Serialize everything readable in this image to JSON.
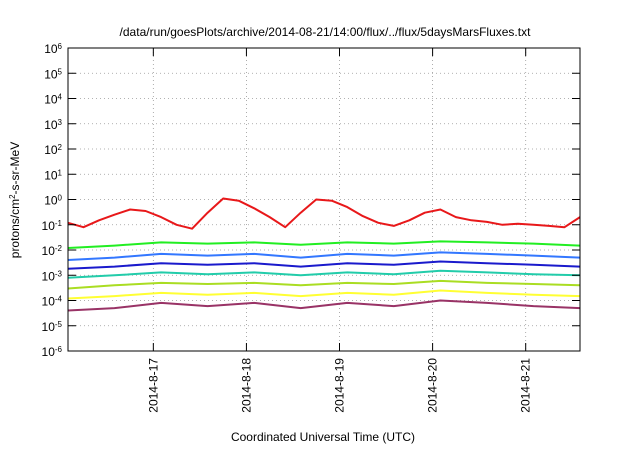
{
  "chart_data": {
    "type": "line",
    "title": "/data/run/goesPlots/archive/2014-08-21/14:00/flux/../flux/5daysMarsFluxes.txt",
    "xlabel": "Coordinated Universal Time (UTC)",
    "ylabel": "protons/cm²-s-sr-MeV",
    "ylabel_parts": {
      "pre": "protons/cm",
      "sup": "2",
      "post": "-s-sr-MeV"
    },
    "yscale": "log",
    "ylim": [
      1e-06,
      1000000.0
    ],
    "y_ticks": [
      {
        "base": "10",
        "exp": "-6",
        "value": 1e-06
      },
      {
        "base": "10",
        "exp": "-5",
        "value": 1e-05
      },
      {
        "base": "10",
        "exp": "-4",
        "value": 0.0001
      },
      {
        "base": "10",
        "exp": "-3",
        "value": 0.001
      },
      {
        "base": "10",
        "exp": "-2",
        "value": 0.01
      },
      {
        "base": "10",
        "exp": "-1",
        "value": 0.1
      },
      {
        "base": "10",
        "exp": "0",
        "value": 1
      },
      {
        "base": "10",
        "exp": "1",
        "value": 10
      },
      {
        "base": "10",
        "exp": "2",
        "value": 100
      },
      {
        "base": "10",
        "exp": "3",
        "value": 1000
      },
      {
        "base": "10",
        "exp": "4",
        "value": 10000
      },
      {
        "base": "10",
        "exp": "5",
        "value": 100000
      },
      {
        "base": "10",
        "exp": "6",
        "value": 1000000
      }
    ],
    "xlim": [
      "2014-08-16 02:00",
      "2014-08-21 14:00"
    ],
    "x_ticks": [
      "2014-8-17",
      "2014-8-18",
      "2014-8-19",
      "2014-8-20",
      "2014-8-21"
    ],
    "grid": true,
    "series": [
      {
        "color": "#e8181a",
        "x": [
          "2014-08-16 02:00",
          "2014-08-16 06:00",
          "2014-08-16 10:00",
          "2014-08-16 14:00",
          "2014-08-16 18:00",
          "2014-08-16 22:00",
          "2014-08-17 02:00",
          "2014-08-17 06:00",
          "2014-08-17 10:00",
          "2014-08-17 14:00",
          "2014-08-17 18:00",
          "2014-08-17 22:00",
          "2014-08-18 02:00",
          "2014-08-18 06:00",
          "2014-08-18 10:00",
          "2014-08-18 14:00",
          "2014-08-18 18:00",
          "2014-08-18 22:00",
          "2014-08-19 02:00",
          "2014-08-19 06:00",
          "2014-08-19 10:00",
          "2014-08-19 14:00",
          "2014-08-19 18:00",
          "2014-08-19 22:00",
          "2014-08-20 02:00",
          "2014-08-20 06:00",
          "2014-08-20 10:00",
          "2014-08-20 14:00",
          "2014-08-20 18:00",
          "2014-08-20 22:00",
          "2014-08-21 02:00",
          "2014-08-21 06:00",
          "2014-08-21 10:00",
          "2014-08-21 14:00"
        ],
        "values": [
          0.12,
          0.08,
          0.15,
          0.25,
          0.4,
          0.35,
          0.2,
          0.1,
          0.07,
          0.3,
          1.1,
          0.9,
          0.45,
          0.2,
          0.08,
          0.3,
          1.0,
          0.9,
          0.5,
          0.22,
          0.12,
          0.09,
          0.15,
          0.3,
          0.4,
          0.2,
          0.15,
          0.13,
          0.1,
          0.11,
          0.1,
          0.09,
          0.08,
          0.2
        ]
      },
      {
        "color": "#22ee22",
        "x": [
          "2014-08-16 02:00",
          "2014-08-16 14:00",
          "2014-08-17 02:00",
          "2014-08-17 14:00",
          "2014-08-18 02:00",
          "2014-08-18 14:00",
          "2014-08-19 02:00",
          "2014-08-19 14:00",
          "2014-08-20 02:00",
          "2014-08-20 14:00",
          "2014-08-21 02:00",
          "2014-08-21 14:00"
        ],
        "values": [
          0.012,
          0.015,
          0.02,
          0.018,
          0.02,
          0.016,
          0.02,
          0.018,
          0.022,
          0.02,
          0.018,
          0.015
        ]
      },
      {
        "color": "#3377ff",
        "x": [
          "2014-08-16 02:00",
          "2014-08-16 14:00",
          "2014-08-17 02:00",
          "2014-08-17 14:00",
          "2014-08-18 02:00",
          "2014-08-18 14:00",
          "2014-08-19 02:00",
          "2014-08-19 14:00",
          "2014-08-20 02:00",
          "2014-08-20 14:00",
          "2014-08-21 02:00",
          "2014-08-21 14:00"
        ],
        "values": [
          0.004,
          0.005,
          0.007,
          0.006,
          0.007,
          0.005,
          0.007,
          0.006,
          0.008,
          0.007,
          0.006,
          0.005
        ]
      },
      {
        "color": "#1a1acc",
        "x": [
          "2014-08-16 02:00",
          "2014-08-16 14:00",
          "2014-08-17 02:00",
          "2014-08-17 14:00",
          "2014-08-18 02:00",
          "2014-08-18 14:00",
          "2014-08-19 02:00",
          "2014-08-19 14:00",
          "2014-08-20 02:00",
          "2014-08-20 14:00",
          "2014-08-21 02:00",
          "2014-08-21 14:00"
        ],
        "values": [
          0.0018,
          0.0022,
          0.003,
          0.0026,
          0.003,
          0.0022,
          0.003,
          0.0026,
          0.0035,
          0.003,
          0.0026,
          0.0022
        ]
      },
      {
        "color": "#22ccaa",
        "x": [
          "2014-08-16 02:00",
          "2014-08-16 14:00",
          "2014-08-17 02:00",
          "2014-08-17 14:00",
          "2014-08-18 02:00",
          "2014-08-18 14:00",
          "2014-08-19 02:00",
          "2014-08-19 14:00",
          "2014-08-20 02:00",
          "2014-08-20 14:00",
          "2014-08-21 02:00",
          "2014-08-21 14:00"
        ],
        "values": [
          0.0008,
          0.001,
          0.0013,
          0.0011,
          0.0013,
          0.001,
          0.0013,
          0.0011,
          0.0015,
          0.0013,
          0.0011,
          0.001
        ]
      },
      {
        "color": "#aadd22",
        "x": [
          "2014-08-16 02:00",
          "2014-08-16 14:00",
          "2014-08-17 02:00",
          "2014-08-17 14:00",
          "2014-08-18 02:00",
          "2014-08-18 14:00",
          "2014-08-19 02:00",
          "2014-08-19 14:00",
          "2014-08-20 02:00",
          "2014-08-20 14:00",
          "2014-08-21 02:00",
          "2014-08-21 14:00"
        ],
        "values": [
          0.0003,
          0.0004,
          0.0005,
          0.00045,
          0.0005,
          0.0004,
          0.0005,
          0.00045,
          0.0006,
          0.0005,
          0.00045,
          0.0004
        ]
      },
      {
        "color": "#ffff33",
        "x": [
          "2014-08-16 02:00",
          "2014-08-16 14:00",
          "2014-08-17 02:00",
          "2014-08-17 14:00",
          "2014-08-18 02:00",
          "2014-08-18 14:00",
          "2014-08-19 02:00",
          "2014-08-19 14:00",
          "2014-08-20 02:00",
          "2014-08-20 14:00",
          "2014-08-21 02:00",
          "2014-08-21 14:00"
        ],
        "values": [
          0.00012,
          0.00015,
          0.0002,
          0.00017,
          0.0002,
          0.00015,
          0.0002,
          0.00017,
          0.00025,
          0.0002,
          0.00017,
          0.00015
        ]
      },
      {
        "color": "#993366",
        "x": [
          "2014-08-16 02:00",
          "2014-08-16 14:00",
          "2014-08-17 02:00",
          "2014-08-17 14:00",
          "2014-08-18 02:00",
          "2014-08-18 14:00",
          "2014-08-19 02:00",
          "2014-08-19 14:00",
          "2014-08-20 02:00",
          "2014-08-20 14:00",
          "2014-08-21 02:00",
          "2014-08-21 14:00"
        ],
        "values": [
          4e-05,
          5e-05,
          8e-05,
          6e-05,
          8e-05,
          5e-05,
          8e-05,
          6e-05,
          0.0001,
          8e-05,
          6e-05,
          5e-05
        ]
      }
    ]
  }
}
